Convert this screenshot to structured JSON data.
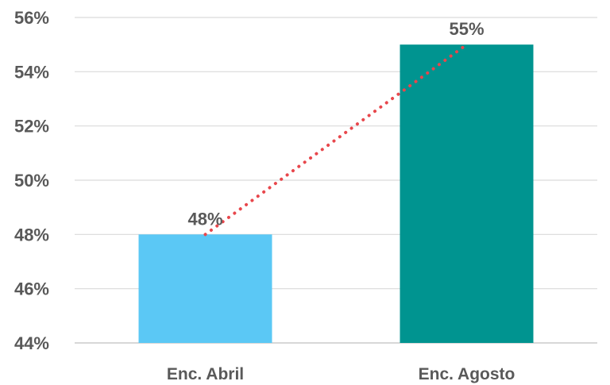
{
  "chart_data": {
    "type": "bar",
    "title": "",
    "xlabel": "",
    "ylabel": "",
    "categories": [
      "Enc. Abril",
      "Enc. Agosto"
    ],
    "values": [
      48,
      55
    ],
    "data_labels": [
      "48%",
      "55%"
    ],
    "bar_colors": [
      "#5BC8F5",
      "#009490"
    ],
    "ylim": [
      44,
      56
    ],
    "y_ticks": [
      44,
      46,
      48,
      50,
      52,
      54,
      56
    ],
    "y_tick_labels": [
      "44%",
      "46%",
      "48%",
      "50%",
      "52%",
      "54%",
      "56%"
    ],
    "grid": true,
    "grid_color": "#d9d9d9",
    "trendline": {
      "style": "dotted",
      "color": "#E8474C",
      "connects": "bar tops"
    },
    "legend": "none"
  }
}
